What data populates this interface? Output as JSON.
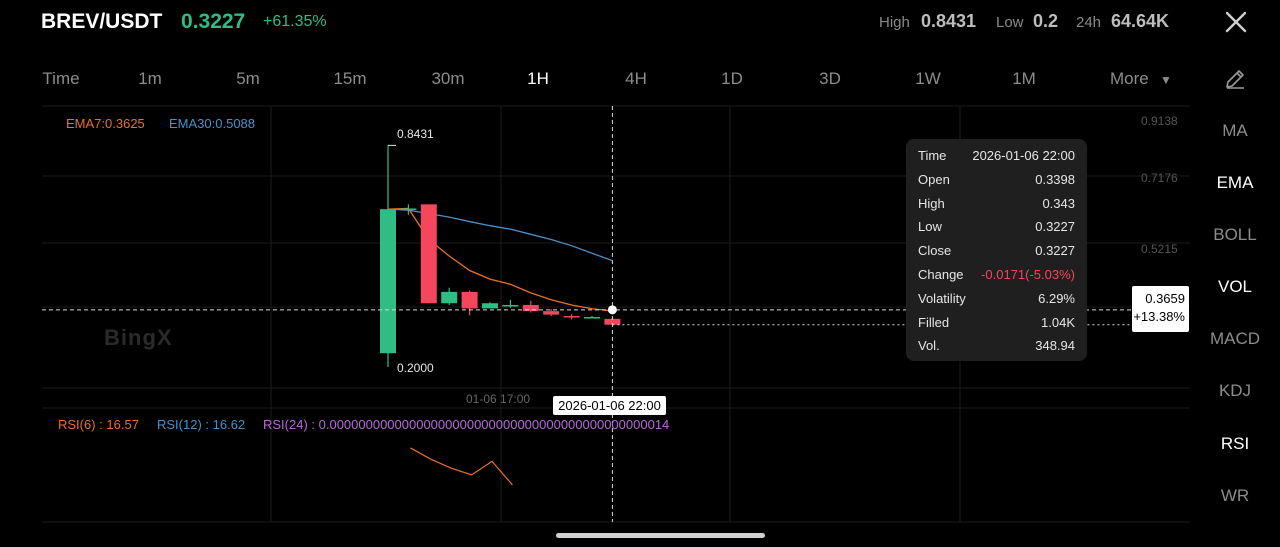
{
  "header": {
    "pair": "BREV/USDT",
    "price": "0.3227",
    "change_pct": "+61.35%",
    "high_label": "High",
    "high_value": "0.8431",
    "low_label": "Low",
    "low_value": "0.2",
    "vol_label": "24h",
    "vol_value": "64.64K"
  },
  "timeframes": {
    "items": [
      "Time",
      "1m",
      "5m",
      "15m",
      "30m",
      "1H",
      "4H",
      "1D",
      "3D",
      "1W",
      "1M"
    ],
    "active": "1H",
    "more_label": "More"
  },
  "indicators": {
    "items": [
      "MA",
      "EMA",
      "BOLL",
      "VOL",
      "MACD",
      "KDJ",
      "RSI",
      "WR"
    ],
    "active": [
      "EMA",
      "VOL",
      "RSI"
    ]
  },
  "chart": {
    "watermark": "BingX",
    "ema7_label": "EMA7:0.3625",
    "ema30_label": "EMA30:0.5088",
    "ema7_color": "#e8702a",
    "ema30_color": "#4a90c8",
    "up_color": "#2ebd85",
    "down_color": "#f6465d",
    "y_axis_ticks": [
      "0.9138",
      "0.7176",
      "0.5215"
    ],
    "x_axis_label": "01-06 17:00",
    "max_marker": "0.8431",
    "min_marker": "0.2000",
    "rsi6_label": "RSI(6) : 16.57",
    "rsi12_label": "RSI(12) : 16.62",
    "rsi24_label": "RSI(24) : 0.00000000000000000000000000000000000000000000014",
    "rsi6_color": "#e8702a",
    "rsi12_color": "#4a90c8",
    "rsi24_color": "#b66ad8"
  },
  "crosshair": {
    "time": "2026-01-06 22:00",
    "price": "0.3659",
    "price_pct": "+13.38%"
  },
  "tooltip": {
    "rows": [
      {
        "k": "Time",
        "v": "2026-01-06 22:00"
      },
      {
        "k": "Open",
        "v": "0.3398"
      },
      {
        "k": "High",
        "v": "0.343"
      },
      {
        "k": "Low",
        "v": "0.3227"
      },
      {
        "k": "Close",
        "v": "0.3227"
      },
      {
        "k": "Change",
        "v": "-0.0171(-5.03%)"
      },
      {
        "k": "Volatility",
        "v": "6.29%"
      },
      {
        "k": "Filled",
        "v": "1.04K"
      },
      {
        "k": "Vol.",
        "v": "348.94"
      }
    ]
  },
  "chart_data": {
    "type": "candlestick",
    "series": [
      {
        "name": "candles",
        "ohlc": [
          [
            0.24,
            0.8431,
            0.2,
            0.658
          ],
          [
            0.658,
            0.672,
            0.642,
            0.66
          ],
          [
            0.672,
            0.672,
            0.385,
            0.385
          ],
          [
            0.385,
            0.43,
            0.38,
            0.418
          ],
          [
            0.418,
            0.422,
            0.35,
            0.37
          ],
          [
            0.37,
            0.388,
            0.37,
            0.385
          ],
          [
            0.38,
            0.395,
            0.372,
            0.38
          ],
          [
            0.38,
            0.392,
            0.358,
            0.362
          ],
          [
            0.362,
            0.368,
            0.348,
            0.352
          ],
          [
            0.348,
            0.353,
            0.338,
            0.345
          ],
          [
            0.343,
            0.348,
            0.342,
            0.345
          ],
          [
            0.3398,
            0.343,
            0.3227,
            0.3227
          ]
        ]
      },
      {
        "name": "EMA7",
        "values": [
          0.658,
          0.66,
          0.57,
          0.522,
          0.48,
          0.455,
          0.44,
          0.415,
          0.395,
          0.38,
          0.369,
          0.3625
        ]
      },
      {
        "name": "EMA30",
        "values": [
          0.658,
          0.655,
          0.645,
          0.635,
          0.622,
          0.61,
          0.6,
          0.585,
          0.57,
          0.552,
          0.53,
          0.5088
        ]
      },
      {
        "name": "RSI6",
        "values": [
          null,
          null,
          null,
          null,
          null,
          null,
          33,
          28,
          24,
          21,
          27,
          16.57
        ]
      }
    ],
    "ylim": [
      0.2,
      0.9138
    ]
  }
}
